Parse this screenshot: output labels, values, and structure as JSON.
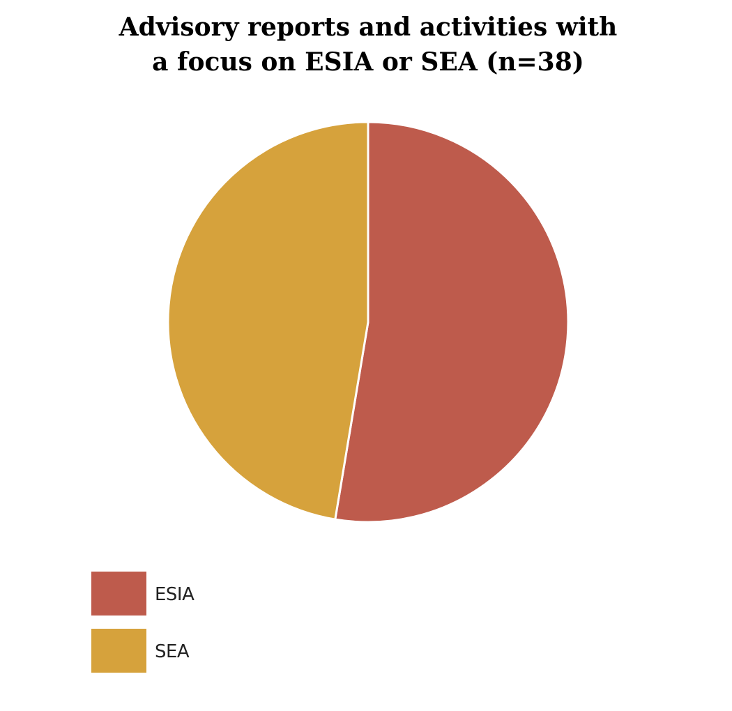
{
  "chart_data": {
    "type": "pie",
    "title_lines": [
      "Advisory reports and activities with",
      "a focus on ESIA or SEA (n=38)"
    ],
    "slices": [
      {
        "label": "ESIA",
        "value": 20,
        "color": "#BE5B4C"
      },
      {
        "label": "SEA",
        "value": 18,
        "color": "#D6A23C"
      }
    ],
    "legend_position": "bottom-left"
  }
}
